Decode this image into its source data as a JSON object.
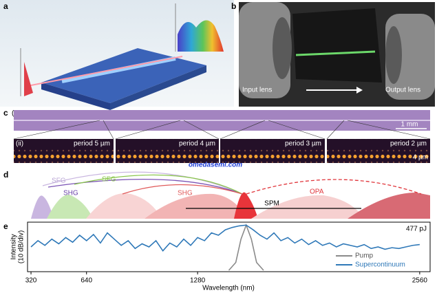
{
  "panels": {
    "a": {
      "label": "a"
    },
    "b": {
      "label": "b",
      "input_lens": "Input lens",
      "output_lens": "Output lens"
    },
    "c": {
      "label": "c",
      "sub_i": "(i)",
      "sub_ii": "(ii)",
      "scale_i": "1 mm",
      "scale_ii": "4 µm",
      "periods": [
        "period 5 µm",
        "period 4 µm",
        "period 3 µm",
        "period 2 µm"
      ]
    },
    "d": {
      "label": "d",
      "sfg_1": "SFG",
      "shg_1": "SHG",
      "sfg_2": "SFG",
      "shg_2": "SHG",
      "spm": "SPM",
      "opa": "OPA"
    }
  },
  "watermark": "omedasemi.com",
  "chart_data": {
    "type": "line",
    "panel_label": "e",
    "annotation": "477 pJ",
    "ylabel": [
      "Intensity",
      "(10 dB/div)"
    ],
    "xlabel": "Wavelength (nm)",
    "xlim": [
      300,
      2620
    ],
    "ylim": [
      -60,
      0
    ],
    "xticks": [
      320,
      640,
      1280,
      2560
    ],
    "series": [
      {
        "name": "Pump",
        "color": "#8a8a8a",
        "x": [
          1460,
          1500,
          1530,
          1560,
          1590,
          1620,
          1660
        ],
        "values": [
          -60,
          -50,
          -20,
          -2,
          -20,
          -50,
          -60
        ]
      },
      {
        "name": "Supercontinuum",
        "color": "#2e78b8",
        "x": [
          320,
          360,
          400,
          440,
          480,
          520,
          560,
          600,
          640,
          680,
          720,
          760,
          800,
          840,
          880,
          920,
          960,
          1000,
          1040,
          1080,
          1120,
          1160,
          1200,
          1240,
          1280,
          1320,
          1360,
          1400,
          1440,
          1480,
          1520,
          1560,
          1600,
          1640,
          1680,
          1720,
          1760,
          1800,
          1840,
          1880,
          1920,
          1960,
          2000,
          2040,
          2080,
          2120,
          2160,
          2200,
          2240,
          2280,
          2320,
          2360,
          2400,
          2440,
          2480,
          2520,
          2560
        ],
        "values": [
          -30,
          -22,
          -28,
          -20,
          -26,
          -18,
          -24,
          -15,
          -22,
          -14,
          -25,
          -12,
          -20,
          -28,
          -22,
          -32,
          -26,
          -30,
          -22,
          -35,
          -25,
          -30,
          -20,
          -28,
          -18,
          -22,
          -12,
          -15,
          -8,
          -5,
          -3,
          -2,
          -8,
          -15,
          -20,
          -12,
          -22,
          -18,
          -25,
          -20,
          -27,
          -22,
          -28,
          -25,
          -30,
          -26,
          -28,
          -30,
          -27,
          -32,
          -30,
          -33,
          -31,
          -32,
          -30,
          -28,
          -27
        ]
      }
    ]
  }
}
